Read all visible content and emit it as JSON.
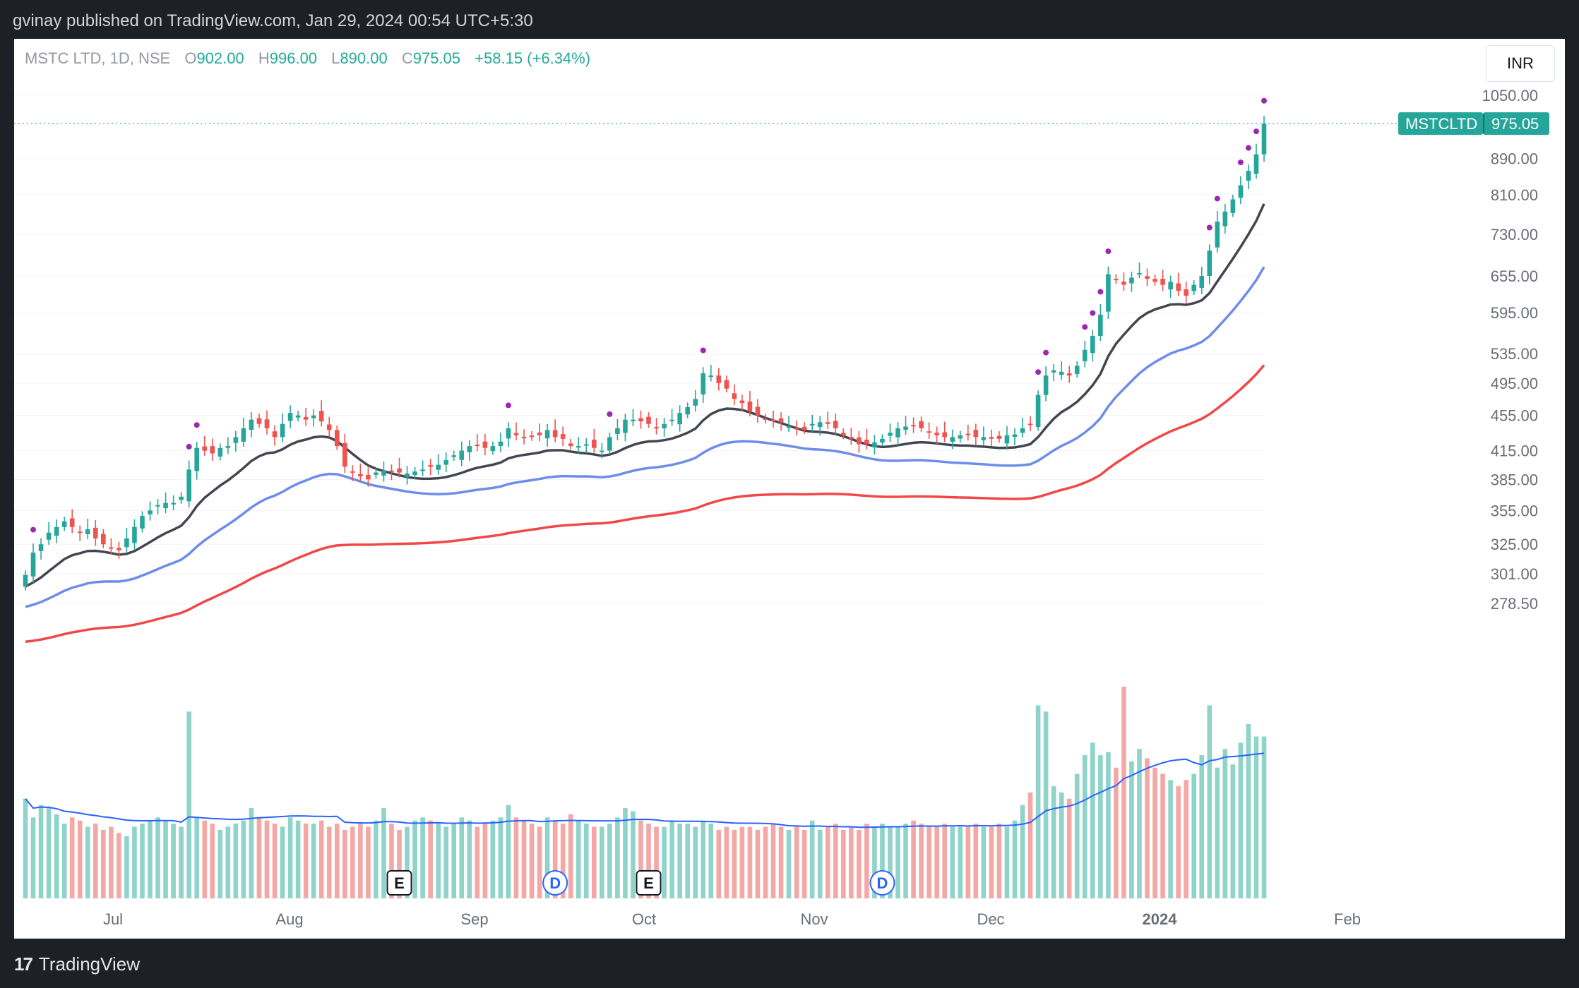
{
  "header": {
    "published": "gvinay published on TradingView.com, Jan 29, 2024 00:54 UTC+5:30"
  },
  "footer": {
    "brand": "TradingView",
    "logo_text": "17"
  },
  "legend": {
    "symbol": "MSTC LTD, 1D, NSE",
    "o_label": "O",
    "o": "902.00",
    "h_label": "H",
    "h": "996.00",
    "l_label": "L",
    "l": "890.00",
    "c_label": "C",
    "c": "975.05",
    "change": "+58.15 (+6.34%)"
  },
  "currency_button": "INR",
  "price_tag": {
    "symbol": "MSTCLTD",
    "price": "975.05"
  },
  "colors": {
    "up": "#26a69a",
    "down": "#ef5350",
    "ema_short": "#434651",
    "ema_mid": "#6d8ee8",
    "ema_long": "#f04848",
    "vol_ma": "#2962ff"
  },
  "chart_data": {
    "type": "candlestick",
    "x_labels": [
      "Jul",
      "Aug",
      "Sep",
      "Oct",
      "Nov",
      "Dec",
      "2024",
      "Feb"
    ],
    "y_ticks": [
      "1050.00",
      "890.00",
      "810.00",
      "730.00",
      "655.00",
      "595.00",
      "535.00",
      "495.00",
      "455.00",
      "415.00",
      "385.00",
      "355.00",
      "325.00",
      "301.00",
      "278.50"
    ],
    "events": [
      {
        "label": "E",
        "type": "earnings",
        "month": "Aug"
      },
      {
        "label": "D",
        "type": "dividend",
        "month": "Sep"
      },
      {
        "label": "E",
        "type": "earnings",
        "month": "Oct"
      },
      {
        "label": "D",
        "type": "dividend",
        "month": "Nov"
      }
    ],
    "last_close": 975.05,
    "series": [
      {
        "name": "price",
        "close": [
          300,
          318,
          325,
          335,
          340,
          345,
          340,
          335,
          338,
          330,
          325,
          322,
          320,
          330,
          340,
          350,
          355,
          360,
          362,
          362,
          368,
          395,
          418,
          415,
          412,
          418,
          420,
          430,
          440,
          450,
          445,
          440,
          430,
          445,
          458,
          455,
          450,
          455,
          448,
          438,
          420,
          398,
          392,
          388,
          385,
          392,
          394,
          393,
          392,
          391,
          393,
          395,
          398,
          400,
          405,
          410,
          415,
          420,
          420,
          418,
          420,
          425,
          440,
          432,
          430,
          430,
          432,
          438,
          430,
          428,
          420,
          420,
          422,
          418,
          415,
          430,
          440,
          450,
          450,
          448,
          445,
          440,
          445,
          450,
          458,
          465,
          475,
          508,
          505,
          495,
          488,
          475,
          470,
          460,
          455,
          450,
          448,
          447,
          442,
          440,
          438,
          445,
          447,
          445,
          440,
          432,
          428,
          422,
          422,
          424,
          428,
          435,
          440,
          442,
          443,
          440,
          435,
          432,
          430,
          430,
          432,
          433,
          430,
          430,
          428,
          428,
          432,
          433,
          440,
          445,
          480,
          505,
          512,
          510,
          505,
          518,
          540,
          560,
          592,
          658,
          648,
          640,
          652,
          660,
          650,
          645,
          640,
          645,
          630,
          622,
          640,
          655,
          700,
          755,
          775,
          800,
          830,
          862,
          900,
          975
        ]
      },
      {
        "name": "volume",
        "values": [
          320,
          260,
          300,
          290,
          270,
          240,
          260,
          250,
          230,
          240,
          220,
          230,
          210,
          200,
          230,
          240,
          250,
          260,
          250,
          240,
          230,
          600,
          260,
          250,
          240,
          220,
          230,
          240,
          250,
          290,
          260,
          250,
          240,
          230,
          260,
          250,
          240,
          240,
          250,
          230,
          240,
          220,
          230,
          240,
          230,
          250,
          290,
          240,
          220,
          230,
          250,
          260,
          250,
          240,
          230,
          240,
          260,
          250,
          230,
          240,
          250,
          260,
          300,
          260,
          250,
          240,
          230,
          260,
          250,
          240,
          270,
          250,
          240,
          230,
          230,
          240,
          260,
          290,
          280,
          250,
          240,
          230,
          230,
          250,
          240,
          240,
          230,
          250,
          240,
          220,
          230,
          220,
          230,
          230,
          220,
          230,
          240,
          230,
          220,
          230,
          220,
          250,
          220,
          230,
          240,
          220,
          230,
          220,
          240,
          230,
          240,
          230,
          230,
          240,
          250,
          240,
          230,
          230,
          240,
          230,
          230,
          230,
          240,
          230,
          230,
          240,
          230,
          250,
          300,
          340,
          620,
          600,
          360,
          340,
          320,
          400,
          460,
          500,
          460,
          470,
          420,
          680,
          440,
          480,
          450,
          420,
          400,
          380,
          360,
          380,
          400,
          460,
          620,
          420,
          480,
          430,
          500,
          560,
          520,
          520
        ]
      },
      {
        "name": "EMA short"
      },
      {
        "name": "EMA mid"
      },
      {
        "name": "EMA long"
      }
    ]
  }
}
